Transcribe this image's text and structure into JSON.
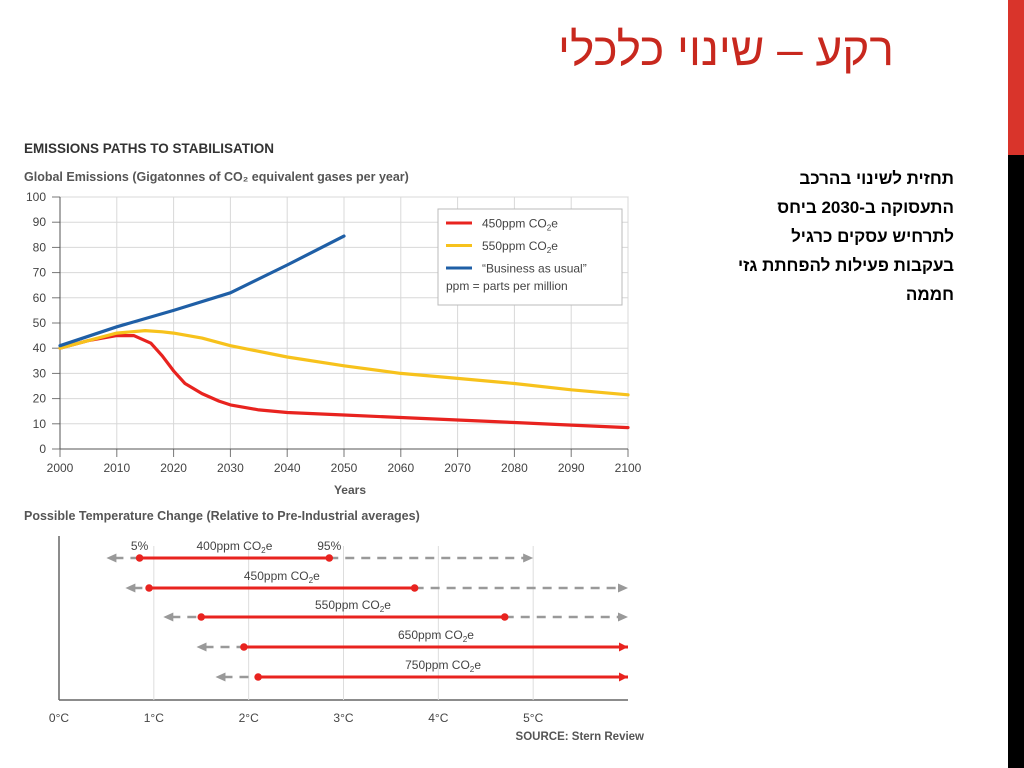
{
  "slide": {
    "title": "רקע – שינוי כלכלי",
    "body_lines": [
      "תחזית לשינוי בהרכב",
      "התעסוקה ב-2030 ביחס",
      "לתרחיש עסקים כרגיל",
      "בעקבות פעילות להפחתת גזי",
      "חממה"
    ],
    "colors": {
      "accent": "#c8281e",
      "side_bar_top": "#d9342b",
      "side_bar_bottom": "#000000"
    }
  },
  "chart_data": [
    {
      "type": "line",
      "title": "EMISSIONS PATHS TO STABILISATION",
      "subtitle": "Global Emissions (Gigatonnes of CO₂ equivalent gases per year)",
      "xlabel": "Years",
      "ylabel": "",
      "xlim": [
        2000,
        2100
      ],
      "ylim": [
        0,
        100
      ],
      "xticks": [
        2000,
        2010,
        2020,
        2030,
        2040,
        2050,
        2060,
        2070,
        2080,
        2090,
        2100
      ],
      "yticks": [
        0,
        10,
        20,
        30,
        40,
        50,
        60,
        70,
        80,
        90,
        100
      ],
      "grid": true,
      "legend_position": "top-right",
      "legend_note": "ppm = parts per million",
      "series": [
        {
          "name": "450ppm CO₂e",
          "color": "#e8231f",
          "x": [
            2000,
            2005,
            2010,
            2013,
            2016,
            2018,
            2020,
            2022,
            2025,
            2028,
            2030,
            2035,
            2040,
            2050,
            2060,
            2070,
            2080,
            2090,
            2100
          ],
          "y": [
            40,
            43,
            45,
            45,
            42,
            37,
            31,
            26,
            22,
            19,
            17.5,
            15.5,
            14.5,
            13.5,
            12.5,
            11.5,
            10.5,
            9.5,
            8.5
          ]
        },
        {
          "name": "550ppm CO₂e",
          "color": "#f7c21c",
          "x": [
            2000,
            2005,
            2010,
            2015,
            2018,
            2020,
            2025,
            2030,
            2040,
            2050,
            2060,
            2070,
            2080,
            2090,
            2100
          ],
          "y": [
            40,
            43,
            46,
            47,
            46.5,
            46,
            44,
            41,
            36.5,
            33,
            30,
            28,
            26,
            23.5,
            21.5
          ]
        },
        {
          "name": "“Business as usual”",
          "color": "#1f5fa6",
          "x": [
            2000,
            2010,
            2020,
            2030,
            2040,
            2050
          ],
          "y": [
            41,
            48.5,
            55,
            62,
            73,
            84.5
          ]
        }
      ]
    },
    {
      "type": "range",
      "title": "Possible Temperature Change (Relative to Pre-Industrial averages)",
      "xlim": [
        0,
        6
      ],
      "xticks": [
        "0°C",
        "1°C",
        "2°C",
        "3°C",
        "4°C",
        "5°C"
      ],
      "line_color": "#e8231f",
      "dash_color": "#999999",
      "series": [
        {
          "name": "400ppm CO₂e",
          "low": 0.85,
          "high": 2.85,
          "range_start": 0.5,
          "range_end": 5.0,
          "low_label": "5%",
          "high_label": "95%"
        },
        {
          "name": "450ppm CO₂e",
          "low": 0.95,
          "high": 3.75,
          "range_start": 0.7,
          "range_end": 6.0
        },
        {
          "name": "550ppm CO₂e",
          "low": 1.5,
          "high": 4.7,
          "range_start": 1.1,
          "range_end": 6.0
        },
        {
          "name": "650ppm CO₂e",
          "low": 1.95,
          "high": 6.0,
          "range_start": 1.45,
          "range_end": 6.0
        },
        {
          "name": "750ppm CO₂e",
          "low": 2.1,
          "high": 6.0,
          "range_start": 1.65,
          "range_end": 6.0
        }
      ],
      "source": "SOURCE: Stern Review"
    }
  ]
}
